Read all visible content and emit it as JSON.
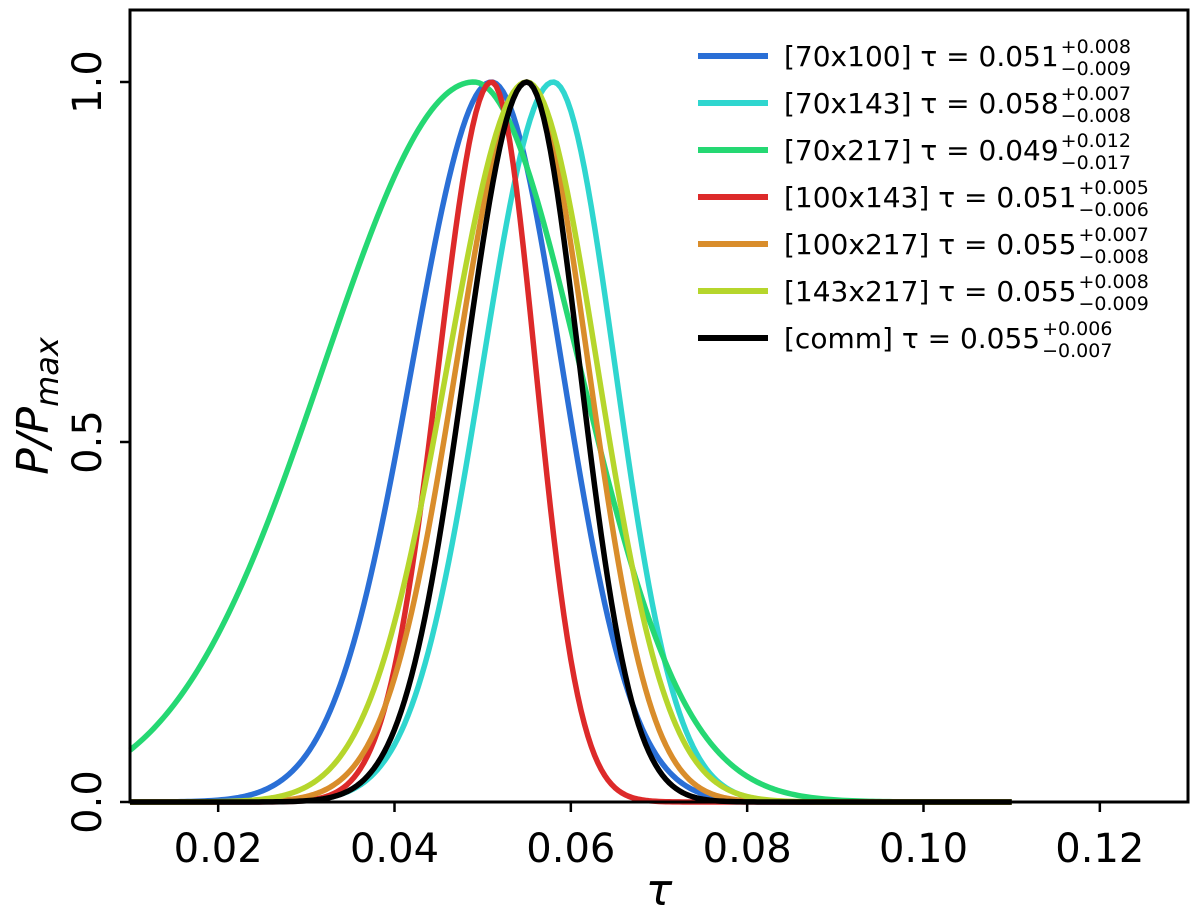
{
  "chart_data": {
    "type": "line",
    "xlabel": "τ",
    "ylabel_main": "P/P",
    "ylabel_sub": "max",
    "xlim": [
      0.01,
      0.13
    ],
    "ylim": [
      0.0,
      1.1
    ],
    "xticks": [
      {
        "v": 0.02,
        "label": "0.02"
      },
      {
        "v": 0.04,
        "label": "0.04"
      },
      {
        "v": 0.06,
        "label": "0.06"
      },
      {
        "v": 0.08,
        "label": "0.08"
      },
      {
        "v": 0.1,
        "label": "0.10"
      },
      {
        "v": 0.12,
        "label": "0.12"
      }
    ],
    "yticks": [
      {
        "v": 0.0,
        "label": "0.0"
      },
      {
        "v": 0.5,
        "label": "0.5"
      },
      {
        "v": 1.0,
        "label": "1.0"
      }
    ],
    "legend_position": "top-right",
    "x_range": [
      0.01,
      0.11
    ],
    "series": [
      {
        "name": "[70x100]",
        "color": "#2a6fd6",
        "mean": 0.051,
        "sigma_minus": 0.009,
        "sigma_plus": 0.008,
        "label_prefix": "[70x100] τ = 0.051",
        "err_plus": "+0.008",
        "err_minus": "−0.009"
      },
      {
        "name": "[70x143]",
        "color": "#2fd6cf",
        "mean": 0.058,
        "sigma_minus": 0.008,
        "sigma_plus": 0.007,
        "label_prefix": "[70x143] τ = 0.058",
        "err_plus": "+0.007",
        "err_minus": "−0.008"
      },
      {
        "name": "[70x217]",
        "color": "#25d873",
        "mean": 0.049,
        "sigma_minus": 0.017,
        "sigma_plus": 0.012,
        "label_prefix": "[70x217] τ = 0.049",
        "err_plus": "+0.012",
        "err_minus": "−0.017"
      },
      {
        "name": "[100x143]",
        "color": "#dd2a2a",
        "mean": 0.051,
        "sigma_minus": 0.006,
        "sigma_plus": 0.005,
        "label_prefix": "[100x143] τ = 0.051",
        "err_plus": "+0.005",
        "err_minus": "−0.006"
      },
      {
        "name": "[100x217]",
        "color": "#d98d2b",
        "mean": 0.055,
        "sigma_minus": 0.008,
        "sigma_plus": 0.007,
        "label_prefix": "[100x217] τ = 0.055",
        "err_plus": "+0.007",
        "err_minus": "−0.008"
      },
      {
        "name": "[143x217]",
        "color": "#b6d62c",
        "mean": 0.055,
        "sigma_minus": 0.009,
        "sigma_plus": 0.008,
        "label_prefix": "[143x217] τ = 0.055",
        "err_plus": "+0.008",
        "err_minus": "−0.009"
      },
      {
        "name": "[comm]",
        "color": "#000000",
        "mean": 0.055,
        "sigma_minus": 0.007,
        "sigma_plus": 0.006,
        "label_prefix": "[comm] τ = 0.055",
        "err_plus": "+0.006",
        "err_minus": "−0.007"
      }
    ]
  }
}
